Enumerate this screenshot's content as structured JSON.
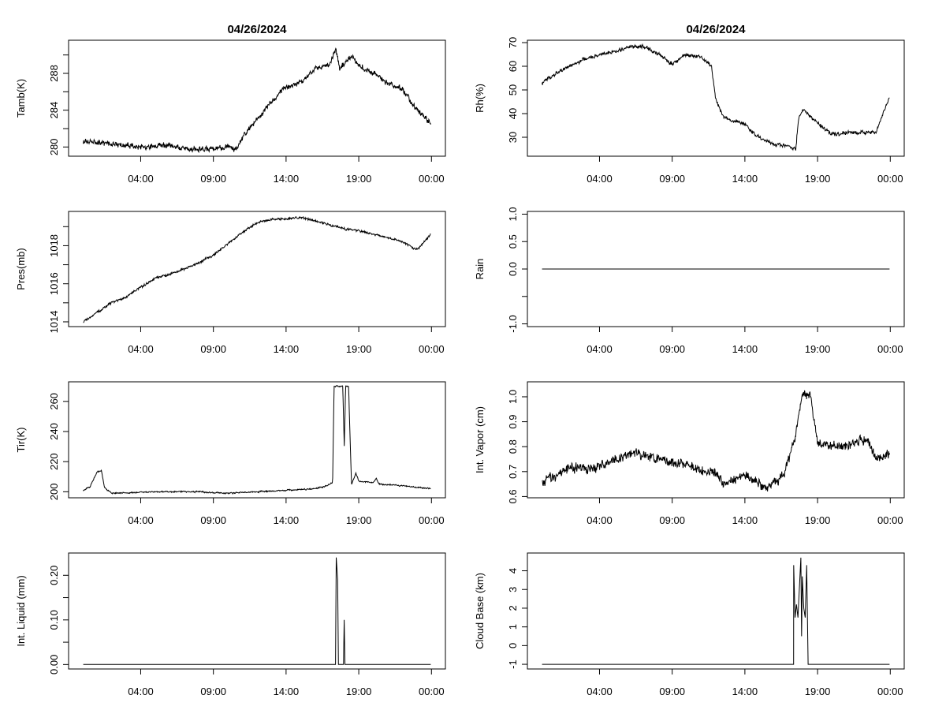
{
  "chart_data": [
    {
      "type": "line",
      "title": "04/26/2024",
      "xlabel": "",
      "ylabel": "Tamb(K)",
      "xlim": [
        0,
        24
      ],
      "xticks": [
        4,
        9,
        14,
        19,
        24
      ],
      "xtick_labels": [
        "04:00",
        "09:00",
        "14:00",
        "19:00",
        "00:00"
      ],
      "ylim": [
        279,
        291.6
      ],
      "yticks": [
        280,
        282,
        284,
        286,
        288,
        290
      ],
      "ytick_labels": [
        "280",
        "",
        "284",
        "",
        "288",
        ""
      ],
      "noise": 0.35,
      "points": [
        [
          0.05,
          280.6
        ],
        [
          1,
          280.5
        ],
        [
          2,
          280.3
        ],
        [
          3,
          280.1
        ],
        [
          4,
          280.1
        ],
        [
          5,
          280.0
        ],
        [
          5.5,
          280.2
        ],
        [
          6,
          280.1
        ],
        [
          7,
          279.9
        ],
        [
          8,
          279.7
        ],
        [
          9,
          279.8
        ],
        [
          10,
          280.0
        ],
        [
          10.6,
          279.7
        ],
        [
          11,
          281
        ],
        [
          12,
          283
        ],
        [
          13,
          285
        ],
        [
          14,
          286.5
        ],
        [
          15,
          287
        ],
        [
          16,
          288.5
        ],
        [
          17,
          289
        ],
        [
          17.4,
          290.6
        ],
        [
          17.7,
          288.5
        ],
        [
          18,
          289
        ],
        [
          18.5,
          289.8
        ],
        [
          19,
          288.8
        ],
        [
          20,
          288
        ],
        [
          21,
          287
        ],
        [
          22,
          286.3
        ],
        [
          23,
          284
        ],
        [
          23.95,
          282.6
        ]
      ]
    },
    {
      "type": "line",
      "title": "04/26/2024",
      "xlabel": "",
      "ylabel": "Rh(%)",
      "xlim": [
        0,
        24
      ],
      "xticks": [
        4,
        9,
        14,
        19,
        24
      ],
      "xtick_labels": [
        "04:00",
        "09:00",
        "14:00",
        "19:00",
        "00:00"
      ],
      "ylim": [
        22,
        71
      ],
      "yticks": [
        30,
        40,
        50,
        60,
        70
      ],
      "ytick_labels": [
        "30",
        "40",
        "50",
        "60",
        "70"
      ],
      "noise": 0.9,
      "points": [
        [
          0.05,
          53
        ],
        [
          1,
          57
        ],
        [
          2,
          60
        ],
        [
          3,
          63
        ],
        [
          4,
          65
        ],
        [
          5,
          66
        ],
        [
          6,
          68
        ],
        [
          7,
          68.5
        ],
        [
          8,
          65
        ],
        [
          9,
          61
        ],
        [
          10,
          65
        ],
        [
          11,
          64
        ],
        [
          11.7,
          60
        ],
        [
          12,
          46
        ],
        [
          12.5,
          39
        ],
        [
          13,
          37
        ],
        [
          14,
          36
        ],
        [
          14.5,
          32
        ],
        [
          15,
          30
        ],
        [
          16,
          27
        ],
        [
          17,
          26
        ],
        [
          17.5,
          25
        ],
        [
          17.7,
          38
        ],
        [
          18,
          42
        ],
        [
          19,
          36
        ],
        [
          20,
          31
        ],
        [
          21,
          32
        ],
        [
          22,
          32
        ],
        [
          23,
          32
        ],
        [
          23.5,
          40
        ],
        [
          23.95,
          47
        ]
      ]
    },
    {
      "type": "line",
      "title": "",
      "xlabel": "",
      "ylabel": "Pres(mb)",
      "xlim": [
        0,
        24
      ],
      "xticks": [
        4,
        9,
        14,
        19,
        24
      ],
      "xtick_labels": [
        "04:00",
        "09:00",
        "14:00",
        "19:00",
        "00:00"
      ],
      "ylim": [
        1013.75,
        1019.8
      ],
      "yticks": [
        1014,
        1015,
        1016,
        1017,
        1018,
        1019
      ],
      "ytick_labels": [
        "1014",
        "",
        "1016",
        "",
        "1018",
        ""
      ],
      "noise": 0.07,
      "points": [
        [
          0.05,
          1014
        ],
        [
          1,
          1014.5
        ],
        [
          2,
          1015
        ],
        [
          3,
          1015.3
        ],
        [
          4,
          1015.8
        ],
        [
          5,
          1016.3
        ],
        [
          6,
          1016.5
        ],
        [
          7,
          1016.8
        ],
        [
          8,
          1017.1
        ],
        [
          9,
          1017.5
        ],
        [
          10,
          1018.1
        ],
        [
          11,
          1018.7
        ],
        [
          12,
          1019.2
        ],
        [
          13,
          1019.4
        ],
        [
          14,
          1019.4
        ],
        [
          15,
          1019.5
        ],
        [
          16,
          1019.3
        ],
        [
          17,
          1019.1
        ],
        [
          18,
          1018.9
        ],
        [
          19,
          1018.8
        ],
        [
          20,
          1018.6
        ],
        [
          21,
          1018.4
        ],
        [
          22,
          1018.2
        ],
        [
          23,
          1017.8
        ],
        [
          23.95,
          1018.6
        ]
      ]
    },
    {
      "type": "line",
      "title": "",
      "xlabel": "",
      "ylabel": "Rain",
      "xlim": [
        0,
        24
      ],
      "xticks": [
        4,
        9,
        14,
        19,
        24
      ],
      "xtick_labels": [
        "04:00",
        "09:00",
        "14:00",
        "19:00",
        "00:00"
      ],
      "ylim": [
        -1.05,
        1.05
      ],
      "yticks": [
        -1,
        -0.5,
        0,
        0.5,
        1
      ],
      "ytick_labels": [
        "-1.0",
        "",
        "0.0",
        "0.5",
        "1.0"
      ],
      "noise": 0,
      "points": [
        [
          0.05,
          0
        ],
        [
          23.95,
          0
        ]
      ]
    },
    {
      "type": "line",
      "title": "",
      "xlabel": "",
      "ylabel": "Tir(K)",
      "xlim": [
        0,
        24
      ],
      "xticks": [
        4,
        9,
        14,
        19,
        24
      ],
      "xtick_labels": [
        "04:00",
        "09:00",
        "14:00",
        "19:00",
        "00:00"
      ],
      "ylim": [
        196,
        273
      ],
      "yticks": [
        200,
        220,
        240,
        260
      ],
      "ytick_labels": [
        "200",
        "220",
        "240",
        "260"
      ],
      "noise": 0.5,
      "points": [
        [
          0.05,
          201
        ],
        [
          0.5,
          203
        ],
        [
          1,
          213
        ],
        [
          1.3,
          214
        ],
        [
          1.5,
          203
        ],
        [
          2,
          199
        ],
        [
          5,
          200
        ],
        [
          8,
          200
        ],
        [
          10,
          199
        ],
        [
          12,
          200
        ],
        [
          14,
          201
        ],
        [
          16,
          202
        ],
        [
          16.8,
          204
        ],
        [
          17.2,
          206
        ],
        [
          17.3,
          270
        ],
        [
          17.9,
          270
        ],
        [
          18,
          230
        ],
        [
          18.1,
          270
        ],
        [
          18.3,
          270
        ],
        [
          18.5,
          205
        ],
        [
          18.8,
          212
        ],
        [
          19,
          207
        ],
        [
          20,
          206
        ],
        [
          20.2,
          209
        ],
        [
          20.4,
          205
        ],
        [
          22,
          204
        ],
        [
          23.95,
          202
        ]
      ]
    },
    {
      "type": "line",
      "title": "",
      "xlabel": "",
      "ylabel": "Int. Vapor (cm)",
      "xlim": [
        0,
        24
      ],
      "xticks": [
        4,
        9,
        14,
        19,
        24
      ],
      "xtick_labels": [
        "04:00",
        "09:00",
        "14:00",
        "19:00",
        "00:00"
      ],
      "ylim": [
        0.595,
        1.06
      ],
      "yticks": [
        0.6,
        0.7,
        0.8,
        0.9,
        1.0
      ],
      "ytick_labels": [
        "0.6",
        "0.7",
        "0.8",
        "0.9",
        "1.0"
      ],
      "noise": 0.022,
      "points": [
        [
          0.05,
          0.66
        ],
        [
          1,
          0.68
        ],
        [
          2,
          0.72
        ],
        [
          3,
          0.71
        ],
        [
          4,
          0.72
        ],
        [
          5,
          0.75
        ],
        [
          6,
          0.77
        ],
        [
          7,
          0.77
        ],
        [
          8,
          0.75
        ],
        [
          9,
          0.74
        ],
        [
          10,
          0.73
        ],
        [
          11,
          0.7
        ],
        [
          12,
          0.7
        ],
        [
          12.5,
          0.65
        ],
        [
          13,
          0.66
        ],
        [
          14,
          0.69
        ],
        [
          15,
          0.65
        ],
        [
          15.5,
          0.64
        ],
        [
          16,
          0.66
        ],
        [
          16.7,
          0.68
        ],
        [
          17,
          0.75
        ],
        [
          17.5,
          0.85
        ],
        [
          18,
          1.02
        ],
        [
          18.5,
          1.0
        ],
        [
          19,
          0.82
        ],
        [
          20,
          0.8
        ],
        [
          21,
          0.8
        ],
        [
          22,
          0.83
        ],
        [
          22.5,
          0.82
        ],
        [
          23,
          0.75
        ],
        [
          23.95,
          0.77
        ]
      ]
    },
    {
      "type": "line",
      "title": "",
      "xlabel": "",
      "ylabel": "Int. Liquid (mm)",
      "xlim": [
        0,
        24
      ],
      "xticks": [
        4,
        9,
        14,
        19,
        24
      ],
      "xtick_labels": [
        "04:00",
        "09:00",
        "14:00",
        "19:00",
        "00:00"
      ],
      "ylim": [
        -0.01,
        0.25
      ],
      "yticks": [
        0,
        0.05,
        0.1,
        0.15,
        0.2
      ],
      "ytick_labels": [
        "0.00",
        "",
        "0.10",
        "",
        "0.20"
      ],
      "noise": 0,
      "points": [
        [
          0.05,
          0
        ],
        [
          17.4,
          0
        ],
        [
          17.45,
          0.24
        ],
        [
          17.55,
          0.19
        ],
        [
          17.6,
          0
        ],
        [
          17.95,
          0
        ],
        [
          18.0,
          0.1
        ],
        [
          18.05,
          0
        ],
        [
          23.95,
          0
        ]
      ]
    },
    {
      "type": "line",
      "title": "",
      "xlabel": "",
      "ylabel": "Cloud Base (km)",
      "xlim": [
        0,
        24
      ],
      "xticks": [
        4,
        9,
        14,
        19,
        24
      ],
      "xtick_labels": [
        "04:00",
        "09:00",
        "14:00",
        "19:00",
        "00:00"
      ],
      "ylim": [
        -1.25,
        4.95
      ],
      "yticks": [
        -1,
        0,
        1,
        2,
        3,
        4
      ],
      "ytick_labels": [
        "-1",
        "0",
        "1",
        "2",
        "3",
        "4"
      ],
      "noise": 0,
      "points": [
        [
          0.05,
          -1
        ],
        [
          17.35,
          -1
        ],
        [
          17.36,
          4.3
        ],
        [
          17.4,
          3
        ],
        [
          17.45,
          1.5
        ],
        [
          17.55,
          2.2
        ],
        [
          17.65,
          1.5
        ],
        [
          17.85,
          4.7
        ],
        [
          17.9,
          0.5
        ],
        [
          17.95,
          3.7
        ],
        [
          18.05,
          2
        ],
        [
          18.15,
          1.5
        ],
        [
          18.25,
          4.3
        ],
        [
          18.3,
          1.6
        ],
        [
          18.35,
          -1
        ],
        [
          23.95,
          -1
        ]
      ]
    }
  ]
}
